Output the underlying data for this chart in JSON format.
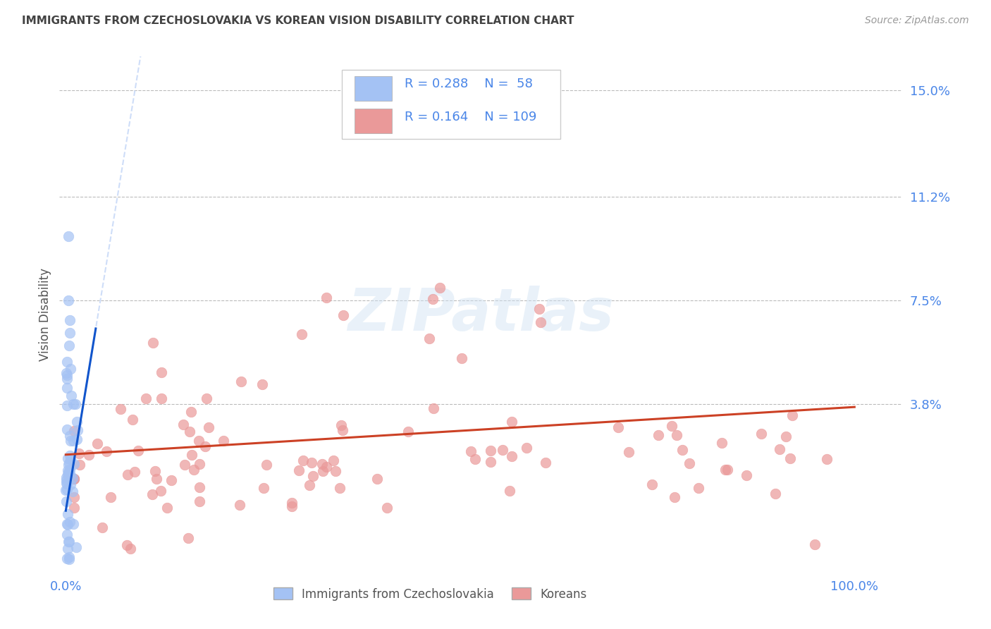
{
  "title": "IMMIGRANTS FROM CZECHOSLOVAKIA VS KOREAN VISION DISABILITY CORRELATION CHART",
  "source": "Source: ZipAtlas.com",
  "ylabel": "Vision Disability",
  "watermark": "ZIPatlas",
  "legend_R1": "0.288",
  "legend_N1": "58",
  "legend_R2": "0.164",
  "legend_N2": "109",
  "legend_label1": "Immigrants from Czechoslovakia",
  "legend_label2": "Koreans",
  "color_blue": "#a4c2f4",
  "color_pink": "#ea9999",
  "color_blue_dark": "#1155cc",
  "color_pink_dark": "#cc4125",
  "color_text_blue": "#4a86e8",
  "title_color": "#434343",
  "source_color": "#999999",
  "background_color": "#ffffff",
  "xlim_min": -0.008,
  "xlim_max": 1.06,
  "ylim_min": -0.022,
  "ylim_max": 0.162,
  "ytick_positions": [
    0.038,
    0.075,
    0.112,
    0.15
  ],
  "ytick_labels": [
    "3.8%",
    "7.5%",
    "11.2%",
    "15.0%"
  ]
}
